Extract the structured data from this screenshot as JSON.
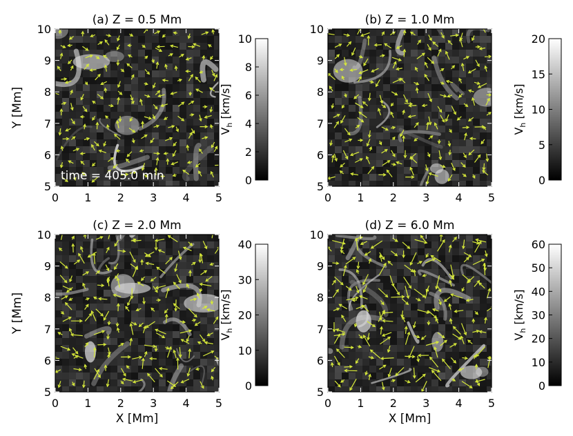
{
  "figure": {
    "time_label": "time = 405.0 min",
    "x_axis_label": "X [Mm]",
    "y_axis_label": "Y [Mm]",
    "colorbar_label": "V_h [km/s]",
    "colorbar_label_main": "V",
    "colorbar_label_sub": "h",
    "colorbar_label_unit": " [km/s]",
    "arrow_color": "#d8ea3a",
    "colormap": "grayscale (black = 0, white = max)"
  },
  "chart_data": [
    {
      "type": "heatmap",
      "panel": "a",
      "title": "(a) Z = 0.5 Mm",
      "x_range": [
        0,
        5
      ],
      "y_range": [
        5,
        10
      ],
      "x_ticks": [
        "0",
        "1",
        "2",
        "3",
        "4",
        "5"
      ],
      "y_ticks": [
        "5",
        "6",
        "7",
        "8",
        "9",
        "10"
      ],
      "colorbar_range": [
        0,
        10
      ],
      "colorbar_ticks": [
        "0",
        "2",
        "4",
        "6",
        "8",
        "10"
      ],
      "overlay": "horizontal velocity vectors",
      "annotation": "time = 405.0 min"
    },
    {
      "type": "heatmap",
      "panel": "b",
      "title": "(b) Z = 1.0 Mm",
      "x_range": [
        0,
        5
      ],
      "y_range": [
        5,
        10
      ],
      "x_ticks": [
        "0",
        "1",
        "2",
        "3",
        "4",
        "5"
      ],
      "y_ticks": [
        "5",
        "6",
        "7",
        "8",
        "9",
        "10"
      ],
      "colorbar_range": [
        0,
        20
      ],
      "colorbar_ticks": [
        "0",
        "5",
        "10",
        "15",
        "20"
      ],
      "overlay": "horizontal velocity vectors"
    },
    {
      "type": "heatmap",
      "panel": "c",
      "title": "(c) Z = 2.0 Mm",
      "x_range": [
        0,
        5
      ],
      "y_range": [
        5,
        10
      ],
      "x_ticks": [
        "0",
        "1",
        "2",
        "3",
        "4",
        "5"
      ],
      "y_ticks": [
        "5",
        "6",
        "7",
        "8",
        "9",
        "10"
      ],
      "colorbar_range": [
        0,
        40
      ],
      "colorbar_ticks": [
        "0",
        "10",
        "20",
        "30",
        "40"
      ],
      "overlay": "horizontal velocity vectors"
    },
    {
      "type": "heatmap",
      "panel": "d",
      "title": "(d) Z = 6.0 Mm",
      "x_range": [
        0,
        5
      ],
      "y_range": [
        5,
        10
      ],
      "x_ticks": [
        "0",
        "1",
        "2",
        "3",
        "4",
        "5"
      ],
      "y_ticks": [
        "5",
        "6",
        "7",
        "8",
        "9",
        "10"
      ],
      "colorbar_range": [
        0,
        60
      ],
      "colorbar_ticks": [
        "0",
        "10",
        "20",
        "30",
        "40",
        "50",
        "60"
      ],
      "overlay": "horizontal velocity vectors"
    }
  ]
}
